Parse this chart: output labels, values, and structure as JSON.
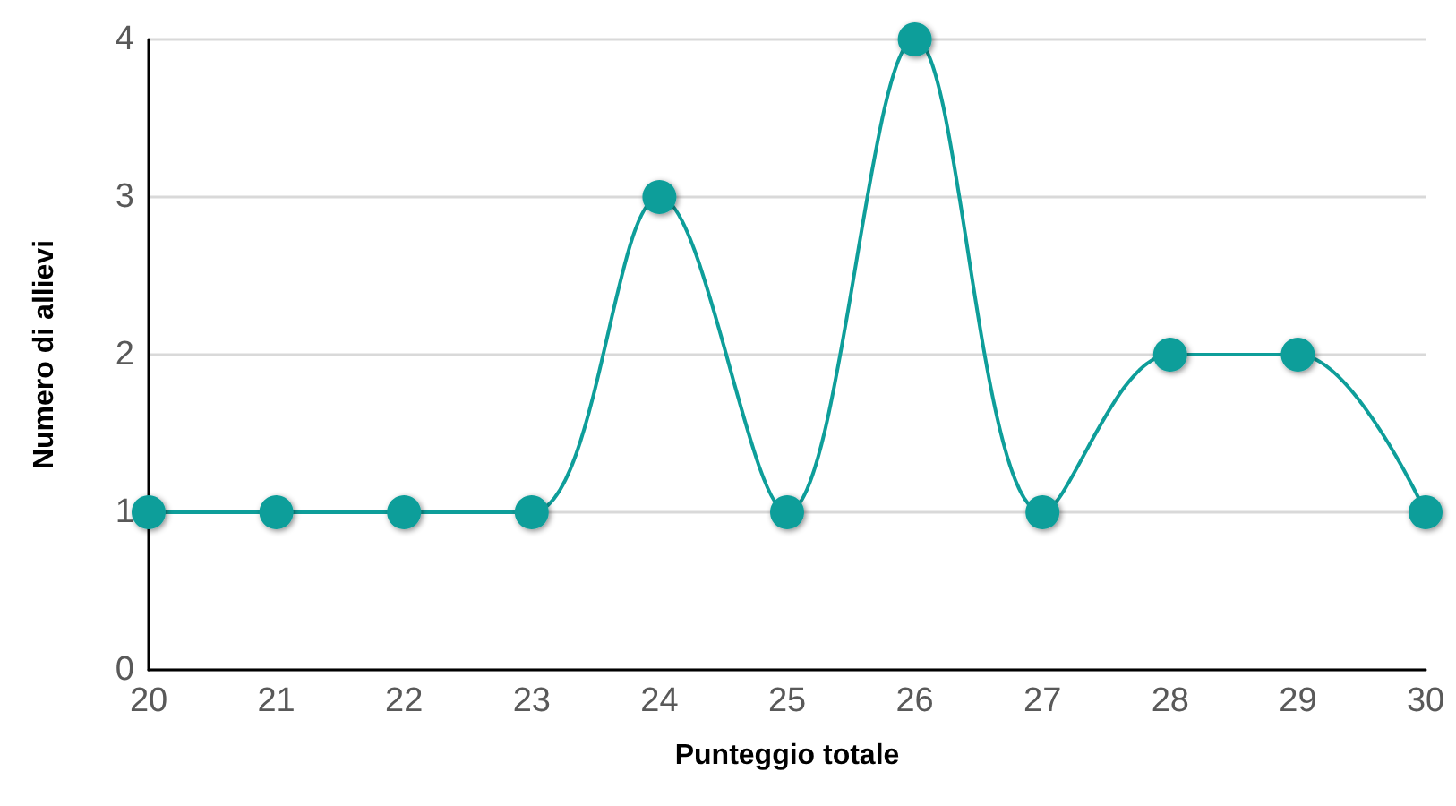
{
  "chart_data": {
    "type": "line",
    "xlabel": "Punteggio totale",
    "ylabel": "Numero di allievi",
    "x": [
      20,
      21,
      22,
      23,
      24,
      25,
      26,
      27,
      28,
      29,
      30
    ],
    "series": [
      {
        "color": "#0e9e9a",
        "values": [
          1,
          1,
          1,
          1,
          3,
          1,
          4,
          1,
          2,
          2,
          1
        ]
      }
    ],
    "xlim": [
      20,
      30
    ],
    "xticks": [
      20,
      21,
      22,
      23,
      24,
      25,
      26,
      27,
      28,
      29,
      30
    ],
    "ylim": [
      0,
      4
    ],
    "yticks": [
      0,
      1,
      2,
      3,
      4
    ],
    "grid": "y",
    "marker": "circle",
    "line_style": "solid"
  }
}
